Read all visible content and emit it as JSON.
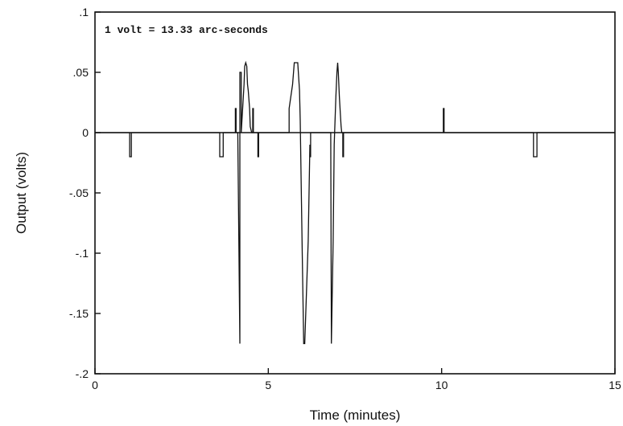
{
  "chart_data": {
    "type": "line",
    "title": "",
    "xlabel": "Time (minutes)",
    "ylabel": "Output (volts)",
    "xlim": [
      0,
      15
    ],
    "ylim": [
      -0.2,
      0.1
    ],
    "x_ticks": [
      0,
      5,
      10,
      15
    ],
    "x_tick_labels": [
      "0",
      "5",
      "10",
      "15"
    ],
    "y_ticks": [
      0.1,
      0.05,
      0,
      -0.05,
      -0.1,
      -0.15,
      -0.2
    ],
    "y_tick_labels": [
      ".1",
      ".05",
      "0",
      "-.05",
      "-.1",
      "-.15",
      "-.2"
    ],
    "grid": false,
    "legend": "none",
    "annotation": "1 volt = 13.33 arc-seconds",
    "series": [
      {
        "x": [
          0,
          1.0,
          1.0,
          1.05,
          1.05,
          3.6,
          3.6,
          3.7,
          3.7,
          4.05,
          4.05,
          4.07,
          4.07,
          4.12,
          4.18,
          4.18,
          4.22,
          4.22,
          4.3,
          4.32,
          4.35,
          4.38,
          4.4,
          4.42,
          4.46,
          4.48,
          4.52,
          4.55,
          4.55,
          4.57,
          4.57,
          4.7,
          4.7,
          4.72,
          4.72,
          5.6,
          5.6,
          5.7,
          5.75,
          5.85,
          5.9,
          5.92,
          5.98,
          6.02,
          6.05,
          6.15,
          6.2,
          6.2,
          6.22,
          6.22,
          6.8,
          6.82,
          6.87,
          6.9,
          6.95,
          6.98,
          7.0,
          7.02,
          7.05,
          7.08,
          7.1,
          7.12,
          7.15,
          7.15,
          7.17,
          7.17,
          10.05,
          10.05,
          10.07,
          10.07,
          12.65,
          12.65,
          12.75,
          12.75,
          15.0
        ],
        "y": [
          0,
          0,
          -0.02,
          -0.02,
          0,
          0,
          -0.02,
          -0.02,
          0,
          0,
          0.02,
          0.02,
          0,
          0,
          -0.175,
          0.05,
          0.05,
          0,
          0.04,
          0.055,
          0.058,
          0.055,
          0.04,
          0.035,
          0.02,
          0.005,
          0,
          0,
          0.02,
          0.02,
          0,
          0,
          -0.02,
          -0.02,
          0,
          0,
          0.02,
          0.04,
          0.058,
          0.058,
          0.035,
          0.01,
          -0.1,
          -0.175,
          -0.175,
          -0.09,
          -0.01,
          -0.02,
          -0.02,
          0,
          0,
          -0.175,
          -0.09,
          -0.01,
          0.03,
          0.05,
          0.058,
          0.05,
          0.03,
          0.015,
          0.005,
          0,
          0,
          -0.02,
          -0.02,
          0,
          0,
          0.02,
          0.02,
          0,
          0,
          -0.02,
          -0.02,
          0,
          0
        ]
      }
    ]
  }
}
